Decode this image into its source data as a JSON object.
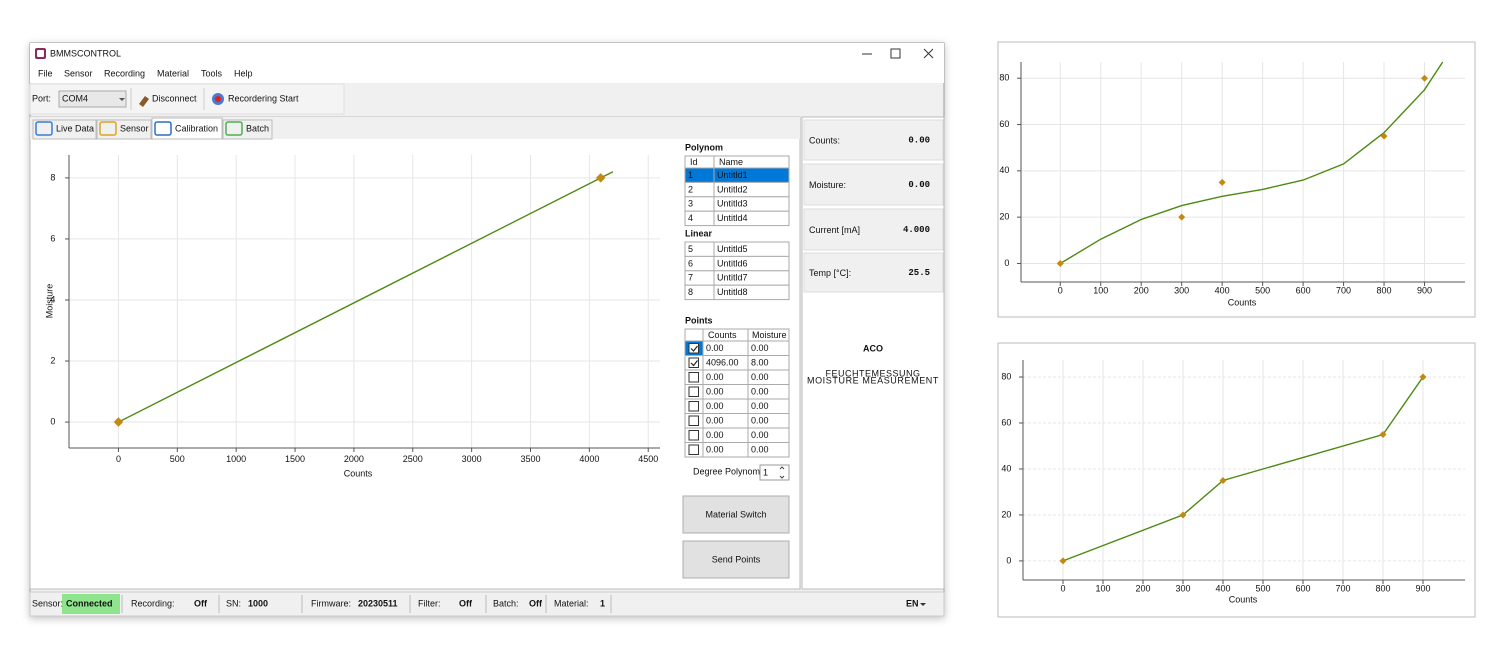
{
  "window": {
    "title": "BMMSCONTROL",
    "menu": [
      {
        "label": "File",
        "enabled": true
      },
      {
        "label": "Sensor",
        "enabled": true
      },
      {
        "label": "Recording",
        "enabled": true
      },
      {
        "label": "Material",
        "enabled": false
      },
      {
        "label": "Tools",
        "enabled": true
      },
      {
        "label": "Help",
        "enabled": true
      }
    ],
    "toolbar": {
      "port_label": "Port:",
      "port": "COM4",
      "disconnect": "Disconnect",
      "record": "Recordering Start"
    },
    "tabs": [
      "Live Data",
      "Sensor",
      "Calibration",
      "Batch"
    ],
    "active_tab": 2
  },
  "polynom": {
    "title": "Polynom",
    "columns": [
      "Id",
      "Name"
    ],
    "selected": 0,
    "rows": [
      [
        "1",
        "Untitld1"
      ],
      [
        "2",
        "Untitld2"
      ],
      [
        "3",
        "Untitld3"
      ],
      [
        "4",
        "Untitld4"
      ]
    ]
  },
  "linear": {
    "title": "Linear",
    "rows": [
      [
        "5",
        "Untitld5"
      ],
      [
        "6",
        "Untitld6"
      ],
      [
        "7",
        "Untitld7"
      ],
      [
        "8",
        "Untitld8"
      ]
    ]
  },
  "points": {
    "title": "Points",
    "columns": [
      "Counts",
      "Moisture"
    ],
    "rows": [
      [
        "0.00",
        "0.00"
      ],
      [
        "4096.00",
        "8.00"
      ],
      [
        "0.00",
        "0.00"
      ],
      [
        "0.00",
        "0.00"
      ],
      [
        "0.00",
        "0.00"
      ],
      [
        "0.00",
        "0.00"
      ],
      [
        "0.00",
        "0.00"
      ],
      [
        "0.00",
        "0.00"
      ]
    ],
    "checked": [
      true,
      true,
      false,
      false,
      false,
      false,
      false,
      false
    ]
  },
  "degree": {
    "label": "Degree Polynom",
    "value": "1"
  },
  "buttons": [
    "Material Switch",
    "Send Points"
  ],
  "readings": [
    {
      "label": "Counts:",
      "value": "0.00"
    },
    {
      "label": "Moisture:",
      "value": "0.00"
    },
    {
      "label": "Current [mA]",
      "value": "4.000"
    },
    {
      "label": "Temp [°C]:",
      "value": "25.5"
    }
  ],
  "logo": {
    "brand": "ACO",
    "line1": "FEUCHTEMESSUNG",
    "line2": "MOISTURE MEASUREMENT"
  },
  "status": [
    {
      "label": "Sensor:",
      "value": "Connected"
    },
    {
      "label": "Recording:",
      "value": "Off"
    },
    {
      "label": "SN:",
      "value": "1000"
    },
    {
      "label": "Firmware:",
      "value": "20230511"
    },
    {
      "label": "Filter:",
      "value": "Off"
    },
    {
      "label": "Batch:",
      "value": "Off"
    },
    {
      "label": "Material:",
      "value": "1"
    }
  ],
  "language": "EN",
  "chart_data": [
    {
      "type": "line",
      "xlabel": "Counts",
      "ylabel": "Moisture",
      "xlim": [
        -420,
        4600
      ],
      "ylim": [
        -0.85,
        8.75
      ],
      "xticks": [
        0,
        500,
        1000,
        1500,
        2000,
        2500,
        3000,
        3500,
        4000,
        4500
      ],
      "yticks": [
        0,
        2,
        4,
        6,
        8
      ],
      "grid": true,
      "series": [
        {
          "color": "#4d8a12",
          "x": [
            0,
            4200
          ],
          "values": [
            0,
            8.2
          ],
          "line": true,
          "marker": false
        },
        {
          "color": "#c48a10",
          "x": [
            0,
            4096
          ],
          "values": [
            0,
            8
          ],
          "line": false,
          "marker": true
        }
      ]
    },
    {
      "type": "line",
      "xlabel": "Counts",
      "xlim": [
        -97,
        1000
      ],
      "ylim": [
        -8,
        87
      ],
      "xticks": [
        0,
        100,
        200,
        300,
        400,
        500,
        600,
        700,
        800,
        900
      ],
      "yticks": [
        0,
        20,
        40,
        60,
        80
      ],
      "grid": true,
      "series": [
        {
          "color": "#4d8a12",
          "x": [
            0,
            100,
            200,
            300,
            400,
            500,
            600,
            700,
            800,
            900,
            945
          ],
          "values": [
            0,
            10.5,
            19,
            25,
            29,
            32,
            36,
            43,
            56.5,
            75,
            87
          ],
          "line": true,
          "marker": false
        },
        {
          "color": "#c48a10",
          "x": [
            0,
            300,
            400,
            800,
            900
          ],
          "values": [
            0,
            20,
            35,
            55,
            80
          ],
          "line": false,
          "marker": true
        }
      ]
    },
    {
      "type": "line",
      "xlabel": "Counts",
      "xlim": [
        -100,
        1005
      ],
      "ylim": [
        -8.3,
        87.4
      ],
      "xticks": [
        0,
        100,
        200,
        300,
        400,
        500,
        600,
        700,
        800,
        900
      ],
      "yticks": [
        0,
        20,
        40,
        60,
        80
      ],
      "grid": true,
      "series": [
        {
          "color": "#4d8a12",
          "marker_color": "#c48a10",
          "x": [
            0,
            300,
            400,
            800,
            900
          ],
          "values": [
            0,
            20,
            35,
            55,
            80
          ],
          "line": true,
          "marker": true
        }
      ]
    }
  ]
}
